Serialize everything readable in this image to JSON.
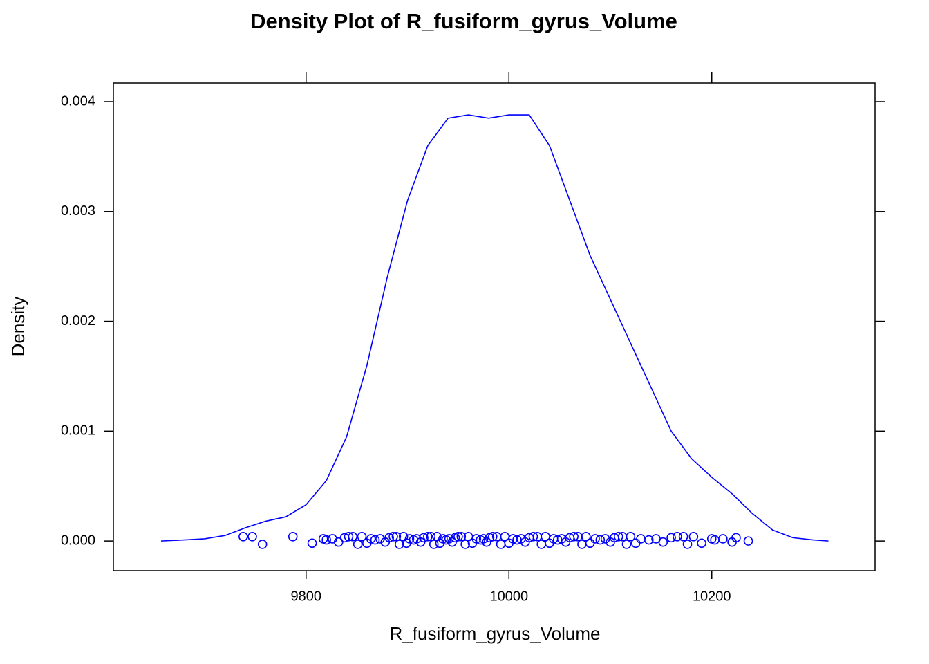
{
  "chart_data": {
    "type": "density",
    "title": "Density Plot of R_fusiform_gyrus_Volume",
    "x_label": "R_fusiform_gyrus_Volume",
    "y_label": "Density",
    "color": "#0000ff",
    "xlim": [
      9610,
      10361
    ],
    "ylim": [
      -0.00027,
      0.00417
    ],
    "xticks": [
      9800,
      10000,
      10200
    ],
    "yticks": [
      {
        "value": 0,
        "label": "0.000"
      },
      {
        "value": 0.001,
        "label": "0.001"
      },
      {
        "value": 0.002,
        "label": "0.002"
      },
      {
        "value": 0.003,
        "label": "0.003"
      },
      {
        "value": 0.004,
        "label": "0.004"
      }
    ],
    "density": {
      "x": [
        9657,
        9680,
        9700,
        9720,
        9740,
        9760,
        9780,
        9800,
        9820,
        9840,
        9860,
        9880,
        9900,
        9920,
        9940,
        9960,
        9980,
        10000,
        10020,
        10040,
        10060,
        10080,
        10100,
        10120,
        10140,
        10160,
        10180,
        10200,
        10220,
        10240,
        10260,
        10280,
        10300,
        10315
      ],
      "y": [
        0,
        1e-05,
        2e-05,
        5e-05,
        0.00012,
        0.00018,
        0.00022,
        0.00033,
        0.00055,
        0.00095,
        0.0016,
        0.0024,
        0.0031,
        0.0036,
        0.00385,
        0.00388,
        0.00385,
        0.00388,
        0.00388,
        0.0036,
        0.0031,
        0.0026,
        0.0022,
        0.0018,
        0.0014,
        0.001,
        0.00075,
        0.00058,
        0.00043,
        0.00025,
        0.0001,
        3e-05,
        1e-05,
        0
      ]
    },
    "points": {
      "x": [
        9738,
        9747,
        9757,
        9787,
        9806,
        9817,
        9820,
        9826,
        9832,
        9838,
        9842,
        9846,
        9851,
        9855,
        9860,
        9864,
        9868,
        9873,
        9878,
        9882,
        9886,
        9889,
        9892,
        9896,
        9899,
        9902,
        9906,
        9909,
        9913,
        9916,
        9920,
        9923,
        9926,
        9929,
        9932,
        9935,
        9938,
        9941,
        9944,
        9947,
        9950,
        9953,
        9957,
        9960,
        9964,
        9968,
        9972,
        9975,
        9978,
        9981,
        9984,
        9988,
        9992,
        9996,
        10000,
        10004,
        10008,
        10012,
        10016,
        10020,
        10024,
        10028,
        10032,
        10036,
        10040,
        10044,
        10048,
        10052,
        10056,
        10060,
        10064,
        10068,
        10072,
        10076,
        10080,
        10085,
        10090,
        10095,
        10100,
        10104,
        10108,
        10112,
        10116,
        10120,
        10125,
        10130,
        10138,
        10145,
        10152,
        10160,
        10166,
        10172,
        10176,
        10182,
        10190,
        10200,
        10203,
        10211,
        10220,
        10224,
        10236
      ],
      "y": [
        4e-05,
        4e-05,
        -3e-05,
        4e-05,
        -2e-05,
        2e-05,
        1e-05,
        2e-05,
        -1e-05,
        3e-05,
        4e-05,
        4e-05,
        -3e-05,
        4e-05,
        -2e-05,
        2e-05,
        1e-05,
        2e-05,
        -1e-05,
        3e-05,
        4e-05,
        4e-05,
        -3e-05,
        4e-05,
        -2e-05,
        2e-05,
        1e-05,
        2e-05,
        -1e-05,
        3e-05,
        4e-05,
        4e-05,
        -3e-05,
        4e-05,
        -2e-05,
        2e-05,
        1e-05,
        2e-05,
        -1e-05,
        3e-05,
        4e-05,
        4e-05,
        -3e-05,
        4e-05,
        -2e-05,
        2e-05,
        1e-05,
        2e-05,
        -1e-05,
        3e-05,
        4e-05,
        4e-05,
        -3e-05,
        4e-05,
        -2e-05,
        2e-05,
        1e-05,
        2e-05,
        -1e-05,
        3e-05,
        4e-05,
        4e-05,
        -3e-05,
        4e-05,
        -2e-05,
        2e-05,
        1e-05,
        2e-05,
        -1e-05,
        3e-05,
        4e-05,
        4e-05,
        -3e-05,
        4e-05,
        -2e-05,
        2e-05,
        1e-05,
        2e-05,
        -1e-05,
        3e-05,
        4e-05,
        4e-05,
        -3e-05,
        4e-05,
        -2e-05,
        2e-05,
        1e-05,
        2e-05,
        -1e-05,
        3e-05,
        4e-05,
        4e-05,
        -3e-05,
        4e-05,
        -2e-05,
        2e-05,
        1e-05,
        2e-05,
        -1e-05,
        3e-05,
        0
      ]
    }
  }
}
